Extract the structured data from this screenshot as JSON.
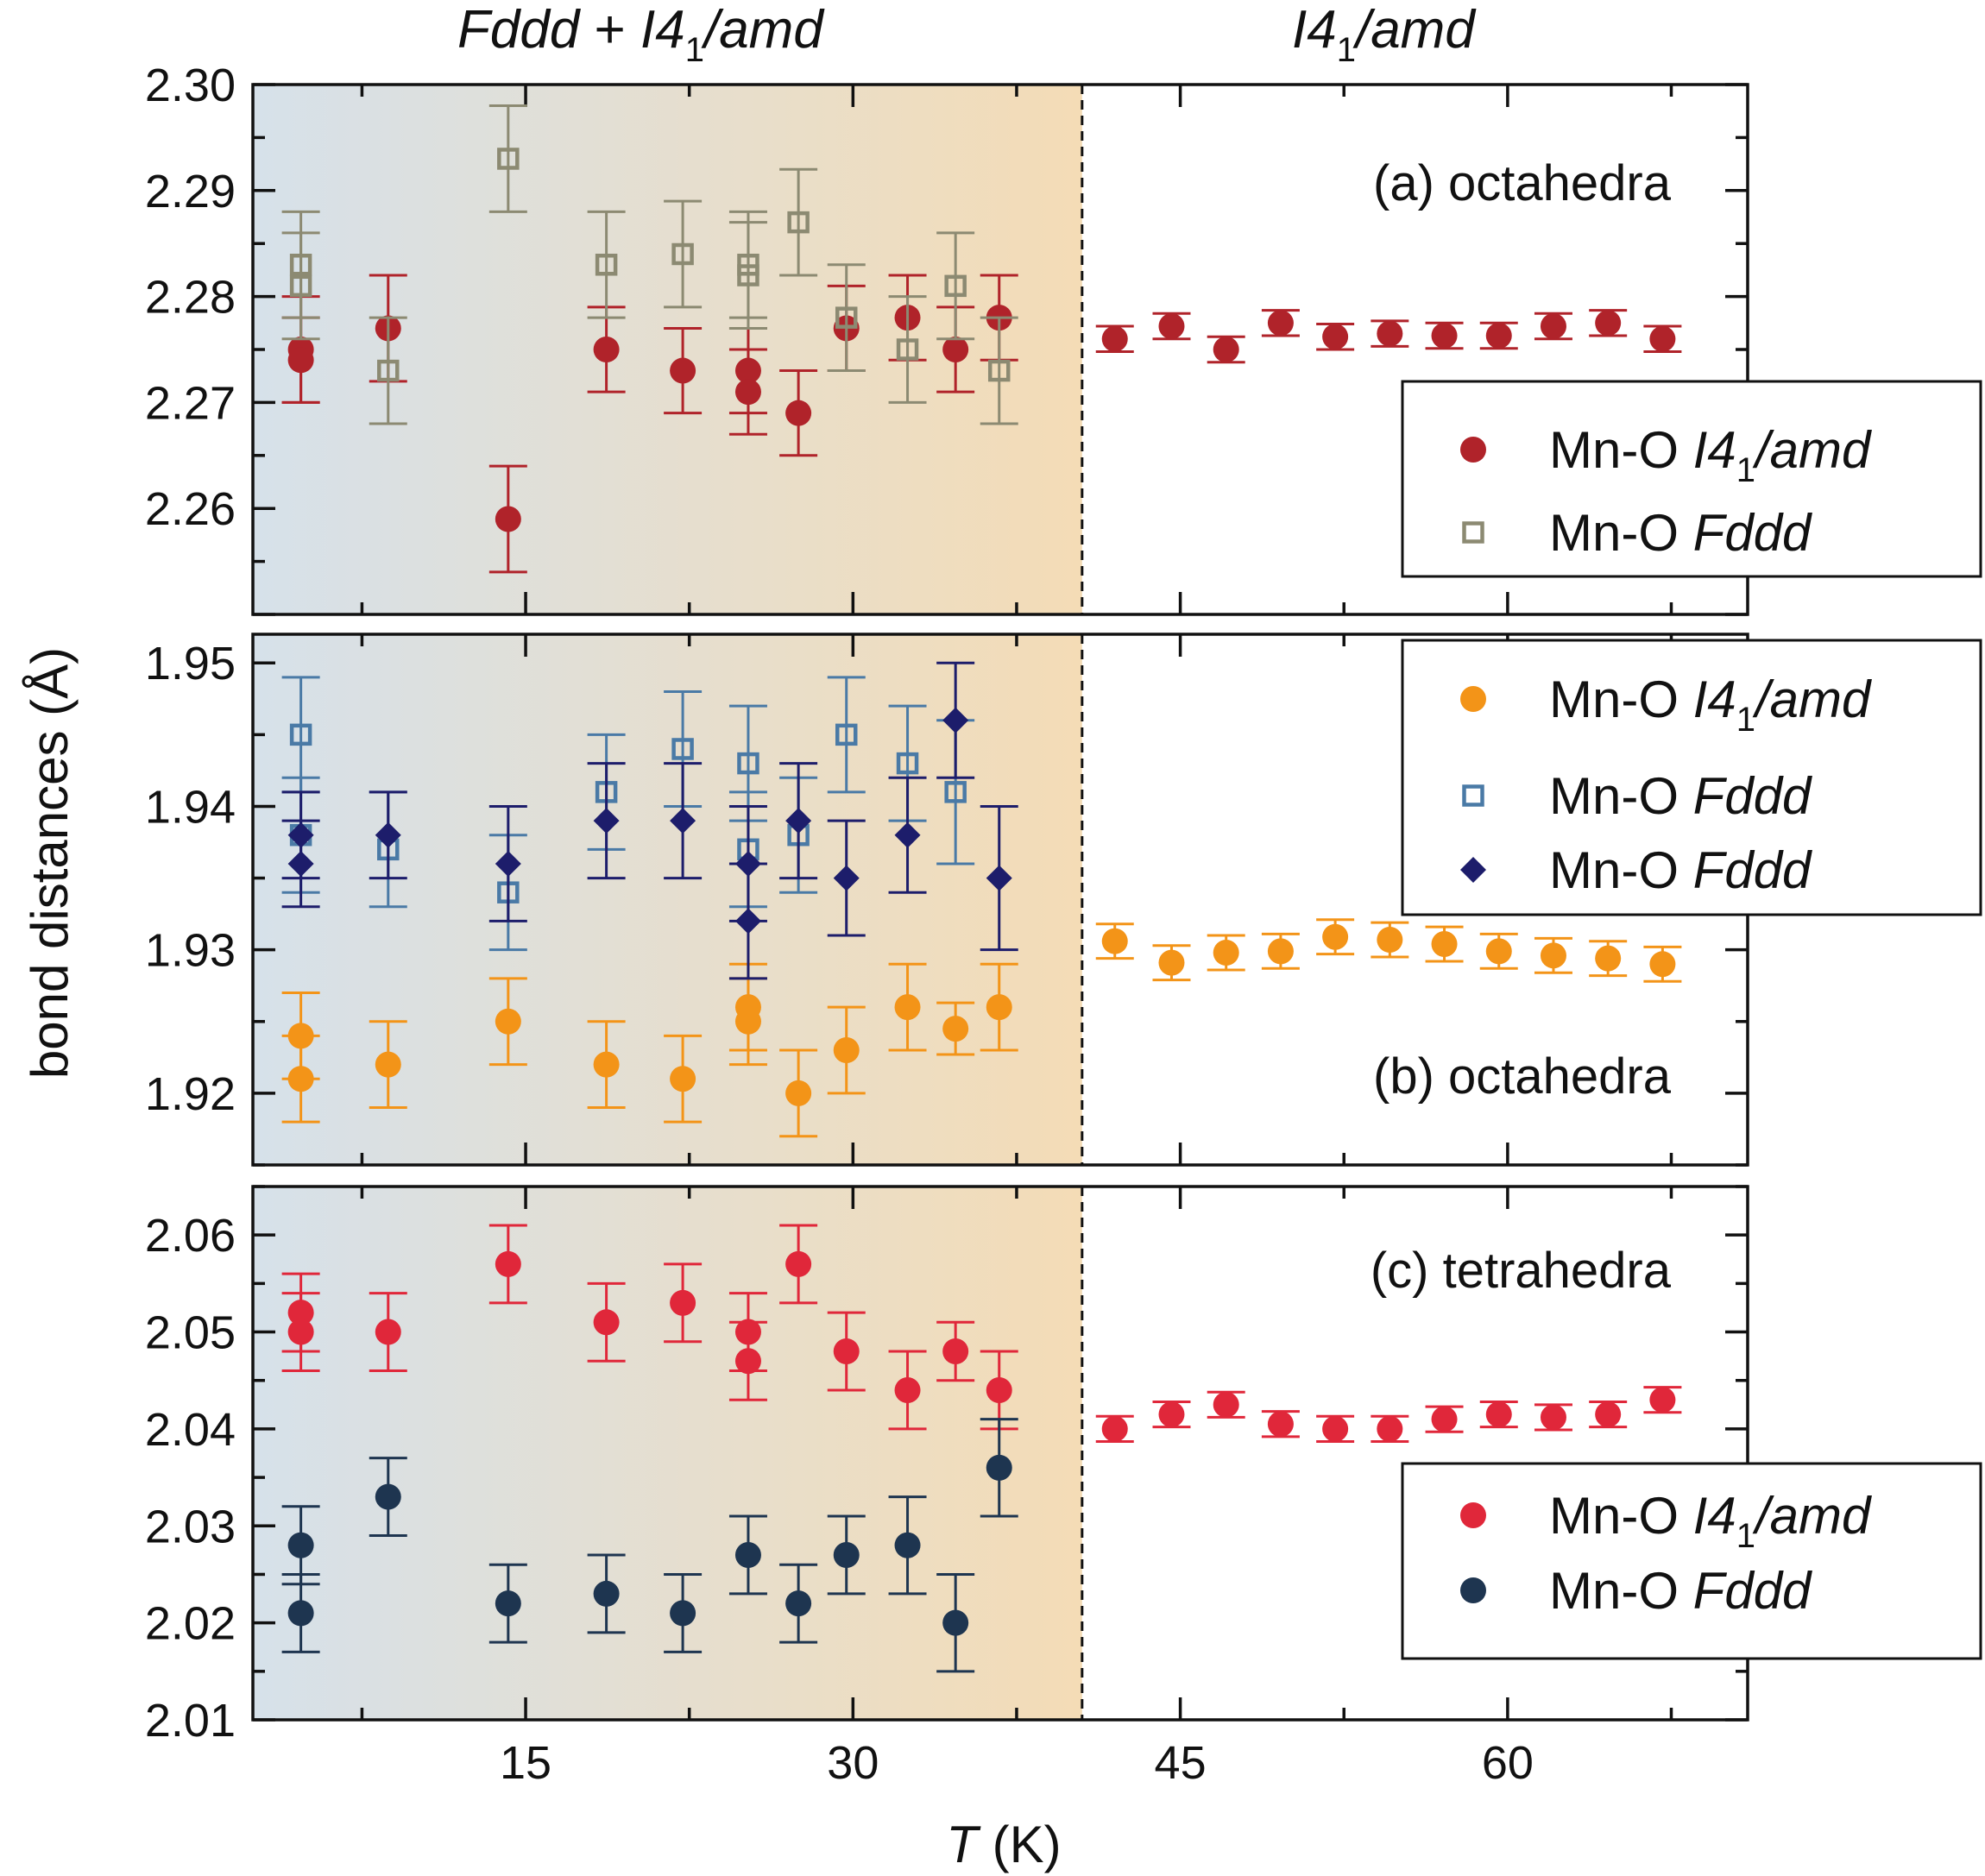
{
  "colors": {
    "shade_left": "#d6e1ea",
    "shade_right": "#f4dcb6",
    "axis": "#111111",
    "octa_I41": "#b0232a",
    "octa_Fddd": "#8c8a72",
    "octb_I41": "#f39418",
    "octb_Fddd_sq": "#4a7aa6",
    "octb_Fddd_di": "#1d1d6b",
    "tet_I41": "#e0273a",
    "tet_Fddd": "#1e3550"
  },
  "phase_labels": {
    "left_a": "Fddd",
    "left_b": " + ",
    "left_c": "I4",
    "left_sub": "1",
    "left_d": "/amd",
    "right_a": "I4",
    "right_sub": "1",
    "right_b": "/amd"
  },
  "ylabel": "bond distances (Å)",
  "xlabel_italic": "T",
  "xlabel_rest": " (K)",
  "legend_prefix": "Mn-O ",
  "chart_data": [
    {
      "type": "scatter",
      "panel_label": "(a) octahedra",
      "xlim": [
        2.5,
        71
      ],
      "ylim": [
        2.25,
        2.3
      ],
      "transition_T": 40.5,
      "xticks": [
        15,
        30,
        45,
        60
      ],
      "yticks": [
        2.26,
        2.27,
        2.28,
        2.29,
        2.3
      ],
      "ytick_labels": [
        "2.26",
        "2.27",
        "2.28",
        "2.29",
        "2.30"
      ],
      "legend": [
        {
          "series": 0,
          "label_italic": "I4",
          "label_sub": "1",
          "label_tail": "/amd"
        },
        {
          "series": 1,
          "label_italic": "Fddd",
          "label_sub": "",
          "label_tail": ""
        }
      ],
      "series": [
        {
          "name": "Mn-O I41/amd",
          "marker": "circle",
          "color": "#b0232a",
          "x": [
            4.7,
            4.7,
            8.7,
            14.2,
            18.7,
            22.2,
            25.2,
            25.2,
            27.5,
            29.7,
            32.5,
            34.7,
            36.7,
            42.0,
            44.6,
            47.1,
            49.6,
            52.1,
            54.6,
            57.1,
            59.6,
            62.1,
            64.6,
            67.1
          ],
          "y": [
            2.275,
            2.274,
            2.277,
            2.259,
            2.275,
            2.273,
            2.273,
            2.271,
            2.269,
            2.277,
            2.278,
            2.275,
            2.278,
            2.276,
            2.2772,
            2.275,
            2.2775,
            2.2762,
            2.2765,
            2.2763,
            2.2763,
            2.2772,
            2.2775,
            2.276
          ],
          "err": [
            0.005,
            0.004,
            0.005,
            0.005,
            0.004,
            0.004,
            0.004,
            0.004,
            0.004,
            0.004,
            0.004,
            0.004,
            0.004,
            0.0012,
            0.0012,
            0.0012,
            0.0012,
            0.0012,
            0.0012,
            0.0012,
            0.0012,
            0.0012,
            0.0012,
            0.0012
          ]
        },
        {
          "name": "Mn-O Fddd",
          "marker": "square-open",
          "color": "#8c8a72",
          "x": [
            4.7,
            4.7,
            8.7,
            14.2,
            18.7,
            22.2,
            25.2,
            25.2,
            27.5,
            29.7,
            32.5,
            34.7,
            36.7
          ],
          "y": [
            2.283,
            2.281,
            2.273,
            2.293,
            2.283,
            2.284,
            2.283,
            2.282,
            2.287,
            2.278,
            2.275,
            2.281,
            2.273
          ],
          "err": [
            0.005,
            0.005,
            0.005,
            0.005,
            0.005,
            0.005,
            0.005,
            0.005,
            0.005,
            0.005,
            0.005,
            0.005,
            0.005
          ]
        }
      ]
    },
    {
      "type": "scatter",
      "panel_label": "(b) octahedra",
      "xlim": [
        2.5,
        71
      ],
      "ylim": [
        1.915,
        1.952
      ],
      "transition_T": 40.5,
      "xticks": [
        15,
        30,
        45,
        60
      ],
      "yticks": [
        1.92,
        1.93,
        1.94,
        1.95
      ],
      "ytick_labels": [
        "1.92",
        "1.93",
        "1.94",
        "1.95"
      ],
      "legend": [
        {
          "series": 0,
          "label_italic": "I4",
          "label_sub": "1",
          "label_tail": "/amd"
        },
        {
          "series": 1,
          "label_italic": "Fddd",
          "label_sub": "",
          "label_tail": ""
        },
        {
          "series": 2,
          "label_italic": "Fddd",
          "label_sub": "",
          "label_tail": ""
        }
      ],
      "series": [
        {
          "name": "Mn-O I41/amd",
          "marker": "circle",
          "color": "#f39418",
          "x": [
            4.7,
            4.7,
            8.7,
            14.2,
            18.7,
            22.2,
            25.2,
            25.2,
            27.5,
            29.7,
            32.5,
            34.7,
            36.7,
            42.0,
            44.6,
            47.1,
            49.6,
            52.1,
            54.6,
            57.1,
            59.6,
            62.1,
            64.6,
            67.1
          ],
          "y": [
            1.924,
            1.921,
            1.922,
            1.925,
            1.922,
            1.921,
            1.926,
            1.925,
            1.92,
            1.923,
            1.926,
            1.9245,
            1.926,
            1.9306,
            1.9291,
            1.9298,
            1.9299,
            1.9309,
            1.9307,
            1.9304,
            1.9299,
            1.9296,
            1.9294,
            1.929
          ],
          "err": [
            0.003,
            0.003,
            0.003,
            0.003,
            0.003,
            0.003,
            0.003,
            0.003,
            0.003,
            0.003,
            0.003,
            0.0018,
            0.003,
            0.0012,
            0.0012,
            0.0012,
            0.0012,
            0.0012,
            0.0012,
            0.0012,
            0.0012,
            0.0012,
            0.0012,
            0.0012
          ]
        },
        {
          "name": "Mn-O Fddd",
          "marker": "square-open",
          "color": "#4a7aa6",
          "x": [
            4.7,
            4.7,
            8.7,
            14.2,
            18.7,
            22.2,
            25.2,
            25.2,
            27.5,
            29.7,
            32.5,
            34.7
          ],
          "y": [
            1.945,
            1.938,
            1.937,
            1.934,
            1.941,
            1.944,
            1.943,
            1.937,
            1.938,
            1.945,
            1.943,
            1.941
          ],
          "err": [
            0.004,
            0.004,
            0.004,
            0.004,
            0.004,
            0.004,
            0.004,
            0.004,
            0.004,
            0.004,
            0.004,
            0.005
          ]
        },
        {
          "name": "Mn-O Fddd",
          "marker": "diamond",
          "color": "#1d1d6b",
          "x": [
            4.7,
            4.7,
            8.7,
            14.2,
            18.7,
            22.2,
            25.2,
            25.2,
            27.5,
            29.7,
            32.5,
            34.7,
            36.7
          ],
          "y": [
            1.938,
            1.936,
            1.938,
            1.936,
            1.939,
            1.939,
            1.936,
            1.932,
            1.939,
            1.935,
            1.938,
            1.946,
            1.935
          ],
          "err": [
            0.003,
            0.003,
            0.003,
            0.004,
            0.004,
            0.004,
            0.004,
            0.004,
            0.004,
            0.004,
            0.004,
            0.004,
            0.005
          ]
        }
      ]
    },
    {
      "type": "scatter",
      "panel_label": "(c) tetrahedra",
      "xlim": [
        2.5,
        71
      ],
      "ylim": [
        2.01,
        2.065
      ],
      "transition_T": 40.5,
      "xticks": [
        15,
        30,
        45,
        60
      ],
      "xtick_labels": [
        "15",
        "30",
        "45",
        "60"
      ],
      "yticks": [
        2.01,
        2.02,
        2.03,
        2.04,
        2.05,
        2.06
      ],
      "ytick_labels": [
        "2.01",
        "2.02",
        "2.03",
        "2.04",
        "2.05",
        "2.06"
      ],
      "legend": [
        {
          "series": 0,
          "label_italic": "I4",
          "label_sub": "1",
          "label_tail": "/amd"
        },
        {
          "series": 1,
          "label_italic": "Fddd",
          "label_sub": "",
          "label_tail": ""
        }
      ],
      "series": [
        {
          "name": "Mn-O I41/amd",
          "marker": "circle",
          "color": "#e0273a",
          "x": [
            4.7,
            4.7,
            8.7,
            14.2,
            18.7,
            22.2,
            25.2,
            25.2,
            27.5,
            29.7,
            32.5,
            34.7,
            36.7,
            42.0,
            44.6,
            47.1,
            49.6,
            52.1,
            54.6,
            57.1,
            59.6,
            62.1,
            64.6,
            67.1
          ],
          "y": [
            2.052,
            2.05,
            2.05,
            2.057,
            2.051,
            2.053,
            2.05,
            2.047,
            2.057,
            2.048,
            2.044,
            2.048,
            2.044,
            2.04,
            2.0415,
            2.0425,
            2.0405,
            2.04,
            2.04,
            2.041,
            2.0415,
            2.0412,
            2.0415,
            2.043
          ],
          "err": [
            0.004,
            0.004,
            0.004,
            0.004,
            0.004,
            0.004,
            0.004,
            0.004,
            0.004,
            0.004,
            0.004,
            0.003,
            0.004,
            0.0013,
            0.0013,
            0.0013,
            0.0013,
            0.0013,
            0.0013,
            0.0013,
            0.0013,
            0.0013,
            0.0013,
            0.0013
          ]
        },
        {
          "name": "Mn-O Fddd",
          "marker": "circle",
          "color": "#1e3550",
          "x": [
            4.7,
            4.7,
            8.7,
            14.2,
            18.7,
            22.2,
            25.2,
            27.5,
            29.7,
            32.5,
            34.7,
            36.7
          ],
          "y": [
            2.028,
            2.021,
            2.033,
            2.022,
            2.023,
            2.021,
            2.027,
            2.022,
            2.027,
            2.028,
            2.02,
            2.036
          ],
          "err": [
            0.004,
            0.004,
            0.004,
            0.004,
            0.004,
            0.004,
            0.004,
            0.004,
            0.004,
            0.005,
            0.005,
            0.005
          ]
        }
      ]
    }
  ]
}
